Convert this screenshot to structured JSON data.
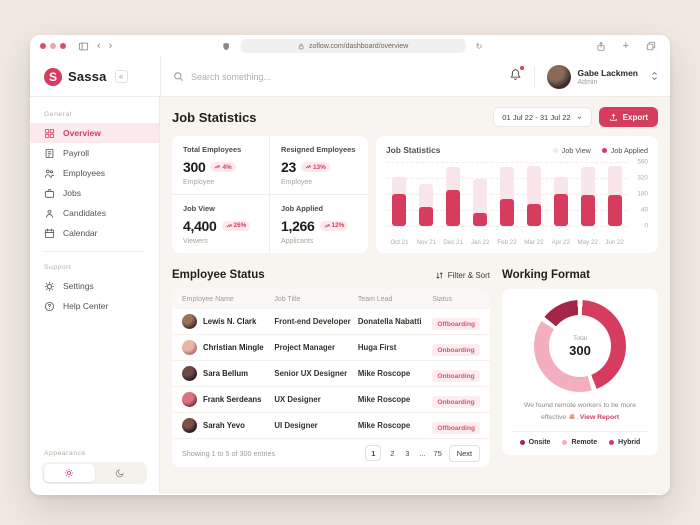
{
  "browser": {
    "url": "zoflow.com/dashboard/overview"
  },
  "topbar": {
    "brand": "Sassa",
    "collapse_icon": "«",
    "search_placeholder": "Search something...",
    "user_name": "Gabe Lackmen",
    "user_role": "Admin"
  },
  "sidebar": {
    "sections": [
      {
        "label": "General",
        "items": [
          {
            "label": "Overview",
            "icon": "overview-icon",
            "active": true
          },
          {
            "label": "Payroll",
            "icon": "payroll-icon",
            "active": false
          },
          {
            "label": "Employees",
            "icon": "employees-icon",
            "active": false
          },
          {
            "label": "Jobs",
            "icon": "jobs-icon",
            "active": false
          },
          {
            "label": "Candidates",
            "icon": "candidates-icon",
            "active": false
          },
          {
            "label": "Calendar",
            "icon": "calendar-icon",
            "active": false
          }
        ]
      },
      {
        "label": "Support",
        "items": [
          {
            "label": "Settings",
            "icon": "settings-icon",
            "active": false
          },
          {
            "label": "Help Center",
            "icon": "help-icon",
            "active": false
          }
        ]
      }
    ],
    "appearance_label": "Appearance"
  },
  "main": {
    "title": "Job Statistics",
    "date_range": "01 Jul 22 - 31 Jul 22",
    "export_label": "Export",
    "stats": [
      {
        "label": "Total Employees",
        "value": "300",
        "delta": "4%",
        "sublabel": "Employee"
      },
      {
        "label": "Resigned Employees",
        "value": "23",
        "delta": "13%",
        "sublabel": "Employee"
      },
      {
        "label": "Job View",
        "value": "4,400",
        "delta": "26%",
        "sublabel": "Viewers"
      },
      {
        "label": "Job Applied",
        "value": "1,266",
        "delta": "12%",
        "sublabel": "Applicants"
      }
    ]
  },
  "chart_data": [
    {
      "type": "bar",
      "title": "Job Statistics",
      "categories": [
        "Oct 21",
        "Nov 21",
        "Dec 21",
        "Jan 22",
        "Feb 22",
        "Mar 22",
        "Apr 22",
        "May 22",
        "Jun 22"
      ],
      "series": [
        {
          "name": "Job View",
          "color": "#f8e6ea",
          "values": [
            340,
            270,
            490,
            310,
            480,
            500,
            340,
            490,
            500
          ]
        },
        {
          "name": "Job Applied",
          "color": "#d63c5e",
          "values": [
            180,
            70,
            215,
            32,
            135,
            95,
            180,
            175,
            175
          ]
        }
      ],
      "y_ticks": [
        0,
        40,
        180,
        320,
        560
      ],
      "xlabel": "",
      "ylabel": "",
      "grid": true,
      "legend_position": "top-right"
    },
    {
      "type": "donut",
      "title": "Working Format",
      "center_label": "Total",
      "total": 300,
      "segments": [
        {
          "label": "Hybrid",
          "value": 135,
          "color": "#d63c5e"
        },
        {
          "label": "Remote",
          "value": 120,
          "color": "#f3aec0"
        },
        {
          "label": "Onsite",
          "value": 45,
          "color": "#a32648"
        }
      ]
    }
  ],
  "employee_status": {
    "title": "Employee Status",
    "filter_label": "Filter & Sort",
    "columns": [
      "Employee Name",
      "Job Title",
      "Team Lead",
      "Status"
    ],
    "rows": [
      {
        "name": "Lewis N. Clark",
        "title": "Front-end Developer",
        "lead": "Donatella Nabatti",
        "status": "Offboarding"
      },
      {
        "name": "Christian Mingle",
        "title": "Project Manager",
        "lead": "Huga First",
        "status": "Onboarding"
      },
      {
        "name": "Sara Bellum",
        "title": "Senior UX Designer",
        "lead": "Mike Roscope",
        "status": "Onboarding"
      },
      {
        "name": "Frank Serdeans",
        "title": "UX Designer",
        "lead": "Mike Roscope",
        "status": "Onboarding"
      },
      {
        "name": "Sarah Yevo",
        "title": "UI Designer",
        "lead": "Mike Roscope",
        "status": "Offboarding"
      }
    ],
    "footer": "Showing 1 to 5 of 300 entries",
    "pages": [
      "1",
      "2",
      "3",
      "...",
      "75"
    ],
    "active_page": "1",
    "next_label": "Next"
  },
  "working_format": {
    "title": "Working Format",
    "center_label": "Total",
    "center_value": "300",
    "caption_text": "We found remote workers to be more effective",
    "caption_link": "View Report",
    "legend": [
      {
        "label": "Onsite",
        "color": "#a32648"
      },
      {
        "label": "Remote",
        "color": "#f3aec0"
      },
      {
        "label": "Hybrid",
        "color": "#d63c5e"
      }
    ]
  },
  "colors": {
    "accent": "#d63c5e",
    "accent_dark": "#a32648",
    "pink_light": "#f3aec0",
    "badge_bg": "#fce8ed",
    "main_bg": "#f8f4f0"
  }
}
